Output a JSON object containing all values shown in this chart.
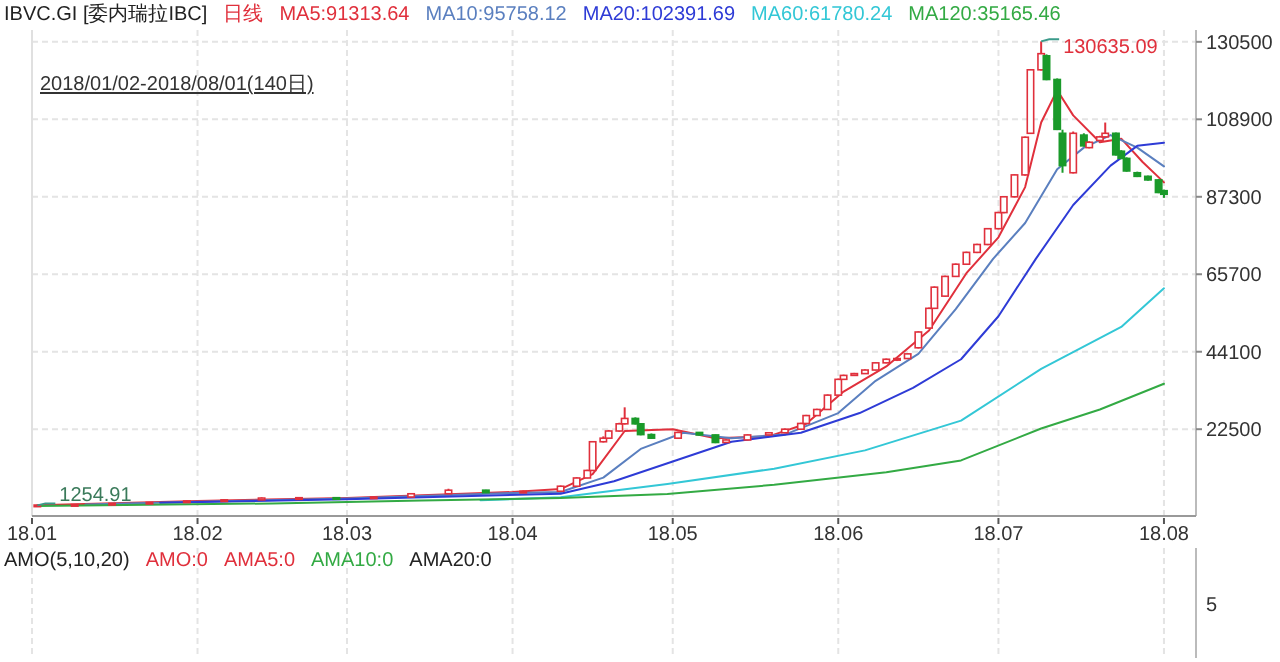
{
  "chart_data": [
    {
      "type": "candlestick",
      "title": "IBVC.GI [委内瑞拉IBC]",
      "subtitle": "日线",
      "legend": "top left",
      "grid": true,
      "xlim": [
        "2018-01-01",
        "2018-08-07"
      ],
      "xticks": [
        {
          "value": "2018-01-01",
          "label": "18.01"
        },
        {
          "value": "2018-02-01",
          "label": "18.02"
        },
        {
          "value": "2018-03-01",
          "label": "18.03"
        },
        {
          "value": "2018-04-01",
          "label": "18.04"
        },
        {
          "value": "2018-05-01",
          "label": "18.05"
        },
        {
          "value": "2018-06-01",
          "label": "18.06"
        },
        {
          "value": "2018-07-01",
          "label": "18.07"
        },
        {
          "value": "2018-08-01",
          "label": "18.08"
        }
      ],
      "ylim": [
        -1700,
        133800
      ],
      "yticks": [
        22500,
        44100,
        65700,
        87300,
        108900,
        130500
      ],
      "x": [
        "2018-01-02",
        "2018-01-09",
        "2018-01-16",
        "2018-01-23",
        "2018-01-30",
        "2018-02-06",
        "2018-02-13",
        "2018-02-20",
        "2018-02-27",
        "2018-03-06",
        "2018-03-13",
        "2018-03-20",
        "2018-03-27",
        "2018-04-03",
        "2018-04-10",
        "2018-04-13",
        "2018-04-15",
        "2018-04-16",
        "2018-04-18",
        "2018-04-19",
        "2018-04-21",
        "2018-04-22",
        "2018-04-24",
        "2018-04-25",
        "2018-04-27",
        "2018-05-02",
        "2018-05-06",
        "2018-05-09",
        "2018-05-11",
        "2018-05-15",
        "2018-05-19",
        "2018-05-22",
        "2018-05-25",
        "2018-05-26",
        "2018-05-28",
        "2018-05-30",
        "2018-06-01",
        "2018-06-02",
        "2018-06-04",
        "2018-06-06",
        "2018-06-08",
        "2018-06-10",
        "2018-06-12",
        "2018-06-14",
        "2018-06-16",
        "2018-06-18",
        "2018-06-19",
        "2018-06-21",
        "2018-06-23",
        "2018-06-25",
        "2018-06-27",
        "2018-06-29",
        "2018-07-01",
        "2018-07-02",
        "2018-07-04",
        "2018-07-06",
        "2018-07-07",
        "2018-07-09",
        "2018-07-10",
        "2018-07-12",
        "2018-07-13",
        "2018-07-15",
        "2018-07-17",
        "2018-07-18",
        "2018-07-20",
        "2018-07-21",
        "2018-07-23",
        "2018-07-24",
        "2018-07-25",
        "2018-07-27",
        "2018-07-29",
        "2018-07-31",
        "2018-08-01"
      ],
      "ohlc": [
        [
          1300,
          1400,
          1254.91,
          1350
        ],
        [
          1350,
          1600,
          1300,
          1500
        ],
        [
          1500,
          1900,
          1450,
          1800
        ],
        [
          1800,
          2200,
          1750,
          2100
        ],
        [
          2100,
          2600,
          2050,
          2500
        ],
        [
          2500,
          3000,
          2400,
          2800
        ],
        [
          2800,
          3500,
          2700,
          3300
        ],
        [
          3300,
          3600,
          3200,
          3400
        ],
        [
          3400,
          3500,
          3200,
          3300
        ],
        [
          3300,
          3800,
          3200,
          3600
        ],
        [
          3600,
          4700,
          3500,
          4500
        ],
        [
          4500,
          5900,
          4400,
          5500
        ],
        [
          5500,
          5600,
          4700,
          4800
        ],
        [
          4800,
          5400,
          4700,
          5200
        ],
        [
          5200,
          6800,
          5100,
          6600
        ],
        [
          6600,
          9100,
          6500,
          8900
        ],
        [
          8900,
          11200,
          8800,
          11000
        ],
        [
          11000,
          19200,
          10900,
          19000
        ],
        [
          19000,
          20500,
          18800,
          20000
        ],
        [
          20000,
          22300,
          19800,
          22000
        ],
        [
          22000,
          24300,
          21800,
          24000
        ],
        [
          24000,
          28600,
          23800,
          25500
        ],
        [
          25500,
          25800,
          23800,
          24000
        ],
        [
          24000,
          24200,
          20800,
          21000
        ],
        [
          21000,
          21300,
          19800,
          20000
        ],
        [
          20000,
          21800,
          19900,
          21600
        ],
        [
          21600,
          21700,
          20700,
          20900
        ],
        [
          20900,
          21000,
          18600,
          18800
        ],
        [
          18800,
          19700,
          18700,
          19500
        ],
        [
          19500,
          21100,
          19400,
          20900
        ],
        [
          20900,
          21700,
          20800,
          21500
        ],
        [
          21500,
          22700,
          21400,
          22500
        ],
        [
          22500,
          24300,
          22400,
          24100
        ],
        [
          24100,
          26500,
          24000,
          26300
        ],
        [
          26300,
          28200,
          26200,
          28000
        ],
        [
          28000,
          32200,
          27900,
          32000
        ],
        [
          32000,
          36600,
          31900,
          36400
        ],
        [
          36400,
          37700,
          36300,
          37500
        ],
        [
          37500,
          38200,
          37400,
          38000
        ],
        [
          38000,
          39200,
          37900,
          39000
        ],
        [
          39000,
          41200,
          38900,
          41000
        ],
        [
          41000,
          42200,
          40900,
          42000
        ],
        [
          42000,
          42500,
          41500,
          42200
        ],
        [
          42200,
          43700,
          42100,
          43500
        ],
        [
          45200,
          49800,
          45000,
          49600
        ],
        [
          50700,
          56400,
          50500,
          56200
        ],
        [
          56200,
          62300,
          56000,
          62100
        ],
        [
          59600,
          65300,
          59400,
          65100
        ],
        [
          65100,
          68700,
          65000,
          68500
        ],
        [
          68500,
          72000,
          68300,
          71800
        ],
        [
          71800,
          74200,
          71600,
          74000
        ],
        [
          74000,
          78600,
          73800,
          78400
        ],
        [
          78400,
          83100,
          78200,
          82900
        ],
        [
          82900,
          87500,
          82700,
          87300
        ],
        [
          87300,
          93600,
          87100,
          93400
        ],
        [
          93400,
          104100,
          93200,
          103900
        ],
        [
          105000,
          122900,
          104800,
          122700
        ],
        [
          122700,
          130635.09,
          122500,
          127200
        ],
        [
          126600,
          127000,
          119800,
          120000
        ],
        [
          120000,
          120300,
          105900,
          106100
        ],
        [
          105000,
          106000,
          94000,
          96000
        ],
        [
          94000,
          105500,
          93800,
          105000
        ],
        [
          104500,
          105000,
          101300,
          101500
        ],
        [
          101000,
          102800,
          100800,
          102500
        ],
        [
          103000,
          104300,
          102800,
          104000
        ],
        [
          104000,
          108000,
          103800,
          105000
        ],
        [
          105000,
          105200,
          98800,
          99000
        ],
        [
          100000,
          100300,
          97800,
          98000
        ],
        [
          98000,
          98300,
          94300,
          94500
        ],
        [
          94000,
          94300,
          92800,
          93000
        ],
        [
          93000,
          93200,
          91800,
          92000
        ],
        [
          92000,
          92200,
          88300,
          88500
        ],
        [
          89000,
          89300,
          87000,
          88000
        ]
      ],
      "series": [
        {
          "type": "line",
          "name": "MA5:91313.64",
          "color": "#e0303c",
          "x": [
            "2018-01-02",
            "2018-02-01",
            "2018-03-01",
            "2018-04-01",
            "2018-04-10",
            "2018-04-16",
            "2018-04-22",
            "2018-05-01",
            "2018-05-09",
            "2018-05-19",
            "2018-05-26",
            "2018-06-02",
            "2018-06-10",
            "2018-06-18",
            "2018-06-25",
            "2018-07-01",
            "2018-07-06",
            "2018-07-09",
            "2018-07-12",
            "2018-07-15",
            "2018-07-20",
            "2018-07-24",
            "2018-07-28",
            "2018-08-01"
          ],
          "values": [
            1300,
            2500,
            3300,
            5000,
            5800,
            10000,
            22000,
            22500,
            20000,
            20500,
            24000,
            33000,
            40000,
            50000,
            66000,
            76000,
            90000,
            108000,
            117000,
            110000,
            102500,
            103500,
            97000,
            91313.64
          ]
        },
        {
          "type": "line",
          "name": "MA10:95758.12",
          "color": "#5a7fbf",
          "x": [
            "2018-01-11",
            "2018-02-01",
            "2018-03-01",
            "2018-04-01",
            "2018-04-10",
            "2018-04-18",
            "2018-04-25",
            "2018-05-03",
            "2018-05-12",
            "2018-05-22",
            "2018-06-01",
            "2018-06-08",
            "2018-06-16",
            "2018-06-23",
            "2018-06-30",
            "2018-07-06",
            "2018-07-12",
            "2018-07-17",
            "2018-07-22",
            "2018-07-27",
            "2018-08-01"
          ],
          "values": [
            1500,
            2300,
            3200,
            4700,
            5000,
            9000,
            17000,
            21500,
            20000,
            21000,
            27000,
            36000,
            43500,
            56000,
            70000,
            80000,
            95000,
            101000,
            104500,
            101000,
            95758.12
          ]
        },
        {
          "type": "line",
          "name": "MA20:102391.69",
          "color": "#2e3bd6",
          "x": [
            "2018-01-25",
            "2018-03-01",
            "2018-04-10",
            "2018-04-20",
            "2018-05-01",
            "2018-05-12",
            "2018-05-25",
            "2018-06-05",
            "2018-06-15",
            "2018-06-24",
            "2018-07-01",
            "2018-07-08",
            "2018-07-15",
            "2018-07-22",
            "2018-07-27",
            "2018-08-01"
          ],
          "values": [
            2000,
            3000,
            4500,
            8000,
            13500,
            19000,
            21500,
            27000,
            34000,
            42000,
            54000,
            70000,
            85000,
            96000,
            101500,
            102391.69
          ]
        },
        {
          "type": "line",
          "name": "MA60:61780.24",
          "color": "#33c7d6",
          "x": [
            "2018-03-26",
            "2018-04-10",
            "2018-04-30",
            "2018-05-20",
            "2018-06-06",
            "2018-06-24",
            "2018-07-09",
            "2018-07-24",
            "2018-08-01"
          ],
          "values": [
            2700,
            3500,
            7200,
            11500,
            16600,
            24900,
            39300,
            51000,
            61780.24
          ]
        },
        {
          "type": "line",
          "name": "MA120:35165.46",
          "color": "#33aa44",
          "x": [
            "2018-01-02",
            "2018-02-15",
            "2018-03-15",
            "2018-04-10",
            "2018-04-30",
            "2018-05-20",
            "2018-06-10",
            "2018-06-24",
            "2018-07-09",
            "2018-07-20",
            "2018-08-01"
          ],
          "values": [
            1100,
            1800,
            2600,
            3300,
            4400,
            7000,
            10500,
            13800,
            22700,
            28000,
            35165.46
          ]
        }
      ],
      "annotations": [
        "130635.09",
        "1254.91",
        "2018/01/02-2018/08/01(140日)"
      ]
    },
    {
      "type": "other",
      "title": "AMO(5,10,20)",
      "annotations": [
        "AMO:0",
        "AMA5:0",
        "AMA10:0",
        "AMA20:0",
        "5"
      ]
    }
  ]
}
